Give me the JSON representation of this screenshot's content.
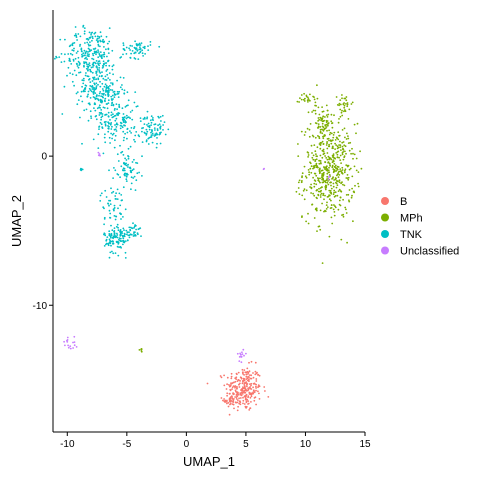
{
  "chart_data": {
    "type": "scatter",
    "xlabel": "UMAP_1",
    "ylabel": "UMAP_2",
    "xlim": [
      -11.2,
      15.0
    ],
    "ylim": [
      -18.5,
      9.8
    ],
    "xticks": [
      -10,
      -5,
      0,
      5,
      10,
      15
    ],
    "xtick_labels": [
      "-10",
      "-5",
      "0",
      "5",
      "10",
      "15"
    ],
    "yticks": [
      -10,
      0
    ],
    "ytick_labels": [
      "-10",
      "0"
    ],
    "grid": false,
    "legend_position": "right",
    "series": [
      {
        "name": "B",
        "color": "#F8766D",
        "clusters": [
          {
            "cx": 4.8,
            "cy": -15.6,
            "sx": 0.75,
            "sy": 0.75,
            "n": 260
          },
          {
            "cx": 3.7,
            "cy": -16.4,
            "sx": 0.25,
            "sy": 0.25,
            "n": 30
          }
        ]
      },
      {
        "name": "MPh",
        "color": "#7CAE00",
        "clusters": [
          {
            "cx": 12.0,
            "cy": -1.0,
            "sx": 1.1,
            "sy": 1.6,
            "n": 520
          },
          {
            "cx": 11.4,
            "cy": 2.4,
            "sx": 0.45,
            "sy": 0.55,
            "n": 60
          },
          {
            "cx": 10.3,
            "cy": 3.9,
            "sx": 0.4,
            "sy": 0.25,
            "n": 25
          },
          {
            "cx": 13.3,
            "cy": 3.5,
            "sx": 0.3,
            "sy": 0.35,
            "n": 30
          },
          {
            "cx": -3.8,
            "cy": -13.0,
            "sx": 0.08,
            "sy": 0.08,
            "n": 6
          }
        ]
      },
      {
        "name": "TNK",
        "color": "#00BFC4",
        "clusters": [
          {
            "cx": -8.0,
            "cy": 6.8,
            "sx": 1.1,
            "sy": 0.9,
            "n": 260
          },
          {
            "cx": -4.2,
            "cy": 7.2,
            "sx": 0.6,
            "sy": 0.3,
            "n": 60
          },
          {
            "cx": -7.2,
            "cy": 4.3,
            "sx": 1.0,
            "sy": 0.7,
            "n": 200
          },
          {
            "cx": -5.8,
            "cy": 2.3,
            "sx": 1.0,
            "sy": 0.8,
            "n": 160
          },
          {
            "cx": -2.8,
            "cy": 1.8,
            "sx": 0.5,
            "sy": 0.5,
            "n": 80
          },
          {
            "cx": -5.0,
            "cy": -0.8,
            "sx": 0.5,
            "sy": 0.6,
            "n": 70
          },
          {
            "cx": -6.2,
            "cy": -3.2,
            "sx": 0.5,
            "sy": 0.6,
            "n": 50
          },
          {
            "cx": -5.8,
            "cy": -5.5,
            "sx": 0.55,
            "sy": 0.5,
            "n": 130
          },
          {
            "cx": -4.3,
            "cy": -5.0,
            "sx": 0.3,
            "sy": 0.3,
            "n": 25
          },
          {
            "cx": -8.8,
            "cy": -0.9,
            "sx": 0.07,
            "sy": 0.12,
            "n": 6
          }
        ]
      },
      {
        "name": "Unclassified",
        "color": "#C77CFF",
        "clusters": [
          {
            "cx": -9.8,
            "cy": -12.6,
            "sx": 0.25,
            "sy": 0.25,
            "n": 16
          },
          {
            "cx": 4.6,
            "cy": -13.3,
            "sx": 0.2,
            "sy": 0.18,
            "n": 14
          },
          {
            "cx": -7.2,
            "cy": 0.2,
            "sx": 0.1,
            "sy": 0.1,
            "n": 4
          },
          {
            "cx": 6.5,
            "cy": -0.9,
            "sx": 0.04,
            "sy": 0.05,
            "n": 2
          },
          {
            "cx": 12.0,
            "cy": -1.4,
            "sx": 0.1,
            "sy": 0.1,
            "n": 3
          }
        ]
      }
    ]
  }
}
